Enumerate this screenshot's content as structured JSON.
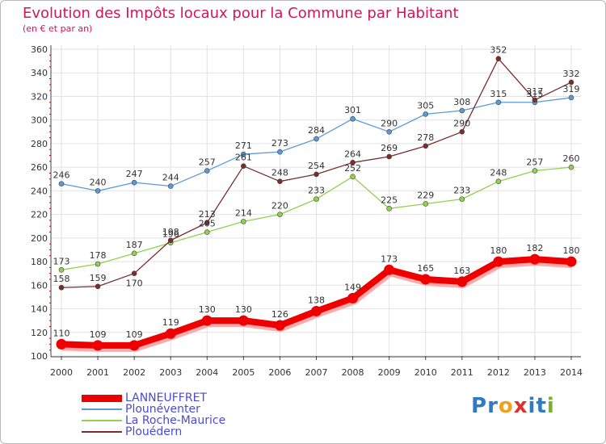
{
  "title": "Evolution des Impôts locaux pour la Commune par Habitant",
  "subtitle": "(en € et par an)",
  "logo": {
    "letters": [
      "P",
      "r",
      "o",
      "x",
      "i",
      "t",
      "i"
    ],
    "colors": [
      "#2e7bc4",
      "#2e7bc4",
      "#f0a020",
      "#e03030",
      "#2e7bc4",
      "#2e7bc4",
      "#7ab02c"
    ]
  },
  "chart_data": {
    "type": "line",
    "title": "Evolution des Impôts locaux pour la Commune par Habitant",
    "ylabel": "(en € et par an)",
    "x": [
      2000,
      2001,
      2002,
      2003,
      2004,
      2005,
      2006,
      2007,
      2008,
      2009,
      2010,
      2011,
      2012,
      2013,
      2014
    ],
    "ylim": [
      100,
      360
    ],
    "yticks": [
      100,
      120,
      140,
      160,
      180,
      200,
      220,
      240,
      260,
      280,
      300,
      320,
      340,
      360
    ],
    "grid": true,
    "series": [
      {
        "name": "LANNEUFFRET",
        "color": "#ee0000",
        "values": [
          110,
          109,
          109,
          119,
          130,
          130,
          126,
          138,
          149,
          173,
          165,
          163,
          180,
          182,
          180
        ]
      },
      {
        "name": "Plounéventer",
        "color": "#5a9bd5",
        "values": [
          246,
          240,
          247,
          244,
          257,
          271,
          273,
          284,
          301,
          290,
          305,
          308,
          315,
          315,
          319
        ]
      },
      {
        "name": "La Roche-Maurice",
        "color": "#92d050",
        "values": [
          173,
          178,
          187,
          196,
          205,
          214,
          220,
          233,
          252,
          225,
          229,
          233,
          248,
          257,
          260
        ]
      },
      {
        "name": "Plouédern",
        "color": "#7b2c2c",
        "values": [
          158,
          159,
          170,
          198,
          213,
          261,
          248,
          254,
          264,
          269,
          278,
          290,
          352,
          317,
          332
        ]
      }
    ]
  }
}
